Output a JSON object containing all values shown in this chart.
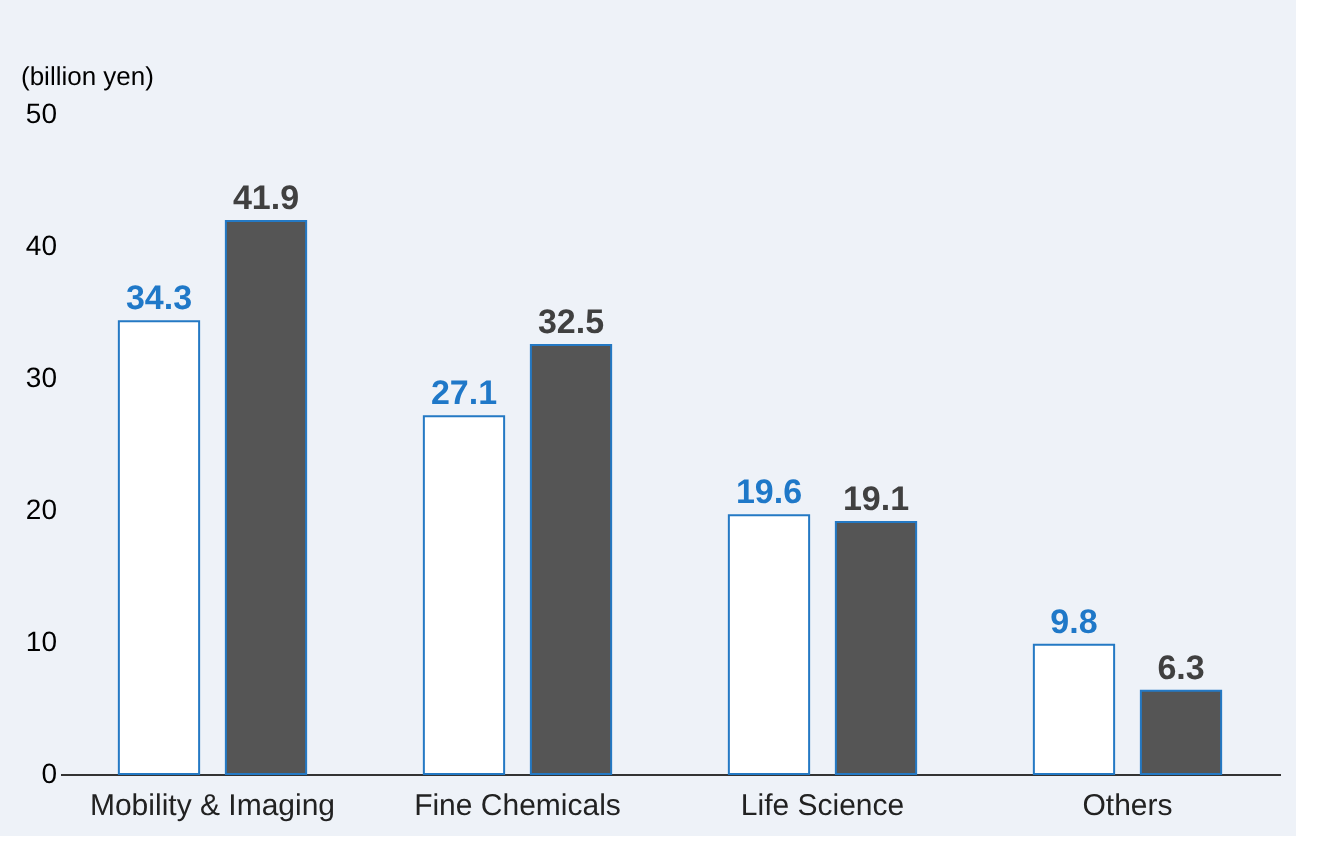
{
  "chart_data": {
    "type": "bar",
    "ylabel": "(billion yen)",
    "categories": [
      "Mobility & Imaging",
      "Fine Chemicals",
      "Life Science",
      "Others"
    ],
    "series": [
      {
        "color": "#ffffff",
        "values": [
          34.3,
          27.1,
          19.6,
          9.8
        ]
      },
      {
        "color": "#555555",
        "values": [
          41.9,
          32.5,
          19.1,
          6.3
        ]
      }
    ],
    "ylim": [
      0,
      50
    ],
    "yticks": [
      0,
      10,
      20,
      30,
      40,
      50
    ],
    "data_labels": true,
    "grid": false
  }
}
